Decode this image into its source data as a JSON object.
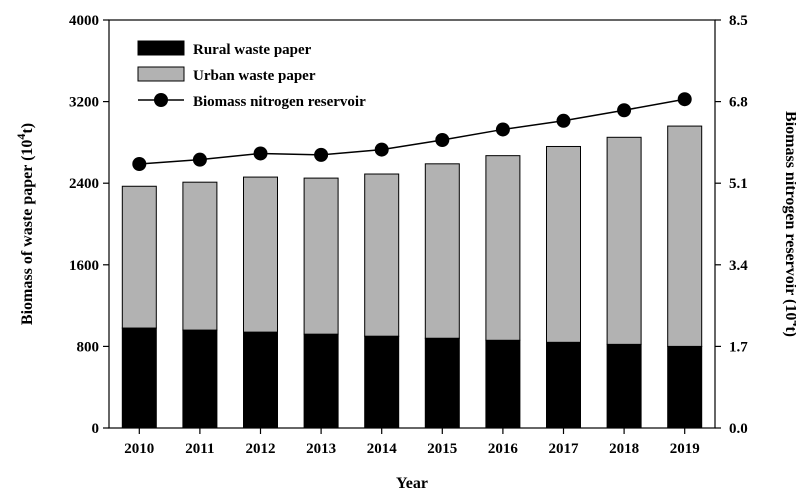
{
  "chart_data": {
    "type": "bar",
    "stacked": true,
    "secondary_series_type": "line",
    "title": "",
    "xlabel": "Year",
    "ylabel_left_main": "Biomass of waste paper (10",
    "ylabel_left_sup": "4",
    "ylabel_left_tail": "t)",
    "ylabel_right_main": "Biomass nitrogen reservoir (10",
    "ylabel_right_sup": "4",
    "ylabel_right_tail": "t)",
    "categories": [
      "2010",
      "2011",
      "2012",
      "2013",
      "2014",
      "2015",
      "2016",
      "2017",
      "2018",
      "2019"
    ],
    "series": [
      {
        "name": "Rural waste paper",
        "axis": "left",
        "color": "#000000",
        "values": [
          980,
          960,
          940,
          920,
          900,
          880,
          860,
          840,
          820,
          800
        ]
      },
      {
        "name": "Urban waste paper",
        "axis": "left",
        "color": "#b2b2b2",
        "values": [
          1390,
          1450,
          1520,
          1530,
          1590,
          1710,
          1810,
          1920,
          2030,
          2160
        ]
      },
      {
        "name": "Biomass nitrogen reservoir",
        "axis": "right",
        "color": "#000000",
        "values": [
          5.5,
          5.59,
          5.72,
          5.69,
          5.8,
          6.0,
          6.22,
          6.4,
          6.62,
          6.85
        ]
      }
    ],
    "ylim_left": [
      0,
      4000
    ],
    "yticks_left": [
      "0",
      "800",
      "1600",
      "2400",
      "3200",
      "4000"
    ],
    "ylim_right": [
      0,
      8.5
    ],
    "yticks_right": [
      "0.0",
      "1.7",
      "3.4",
      "5.1",
      "6.8",
      "8.5"
    ],
    "grid": false,
    "legend_position": "top-left"
  }
}
